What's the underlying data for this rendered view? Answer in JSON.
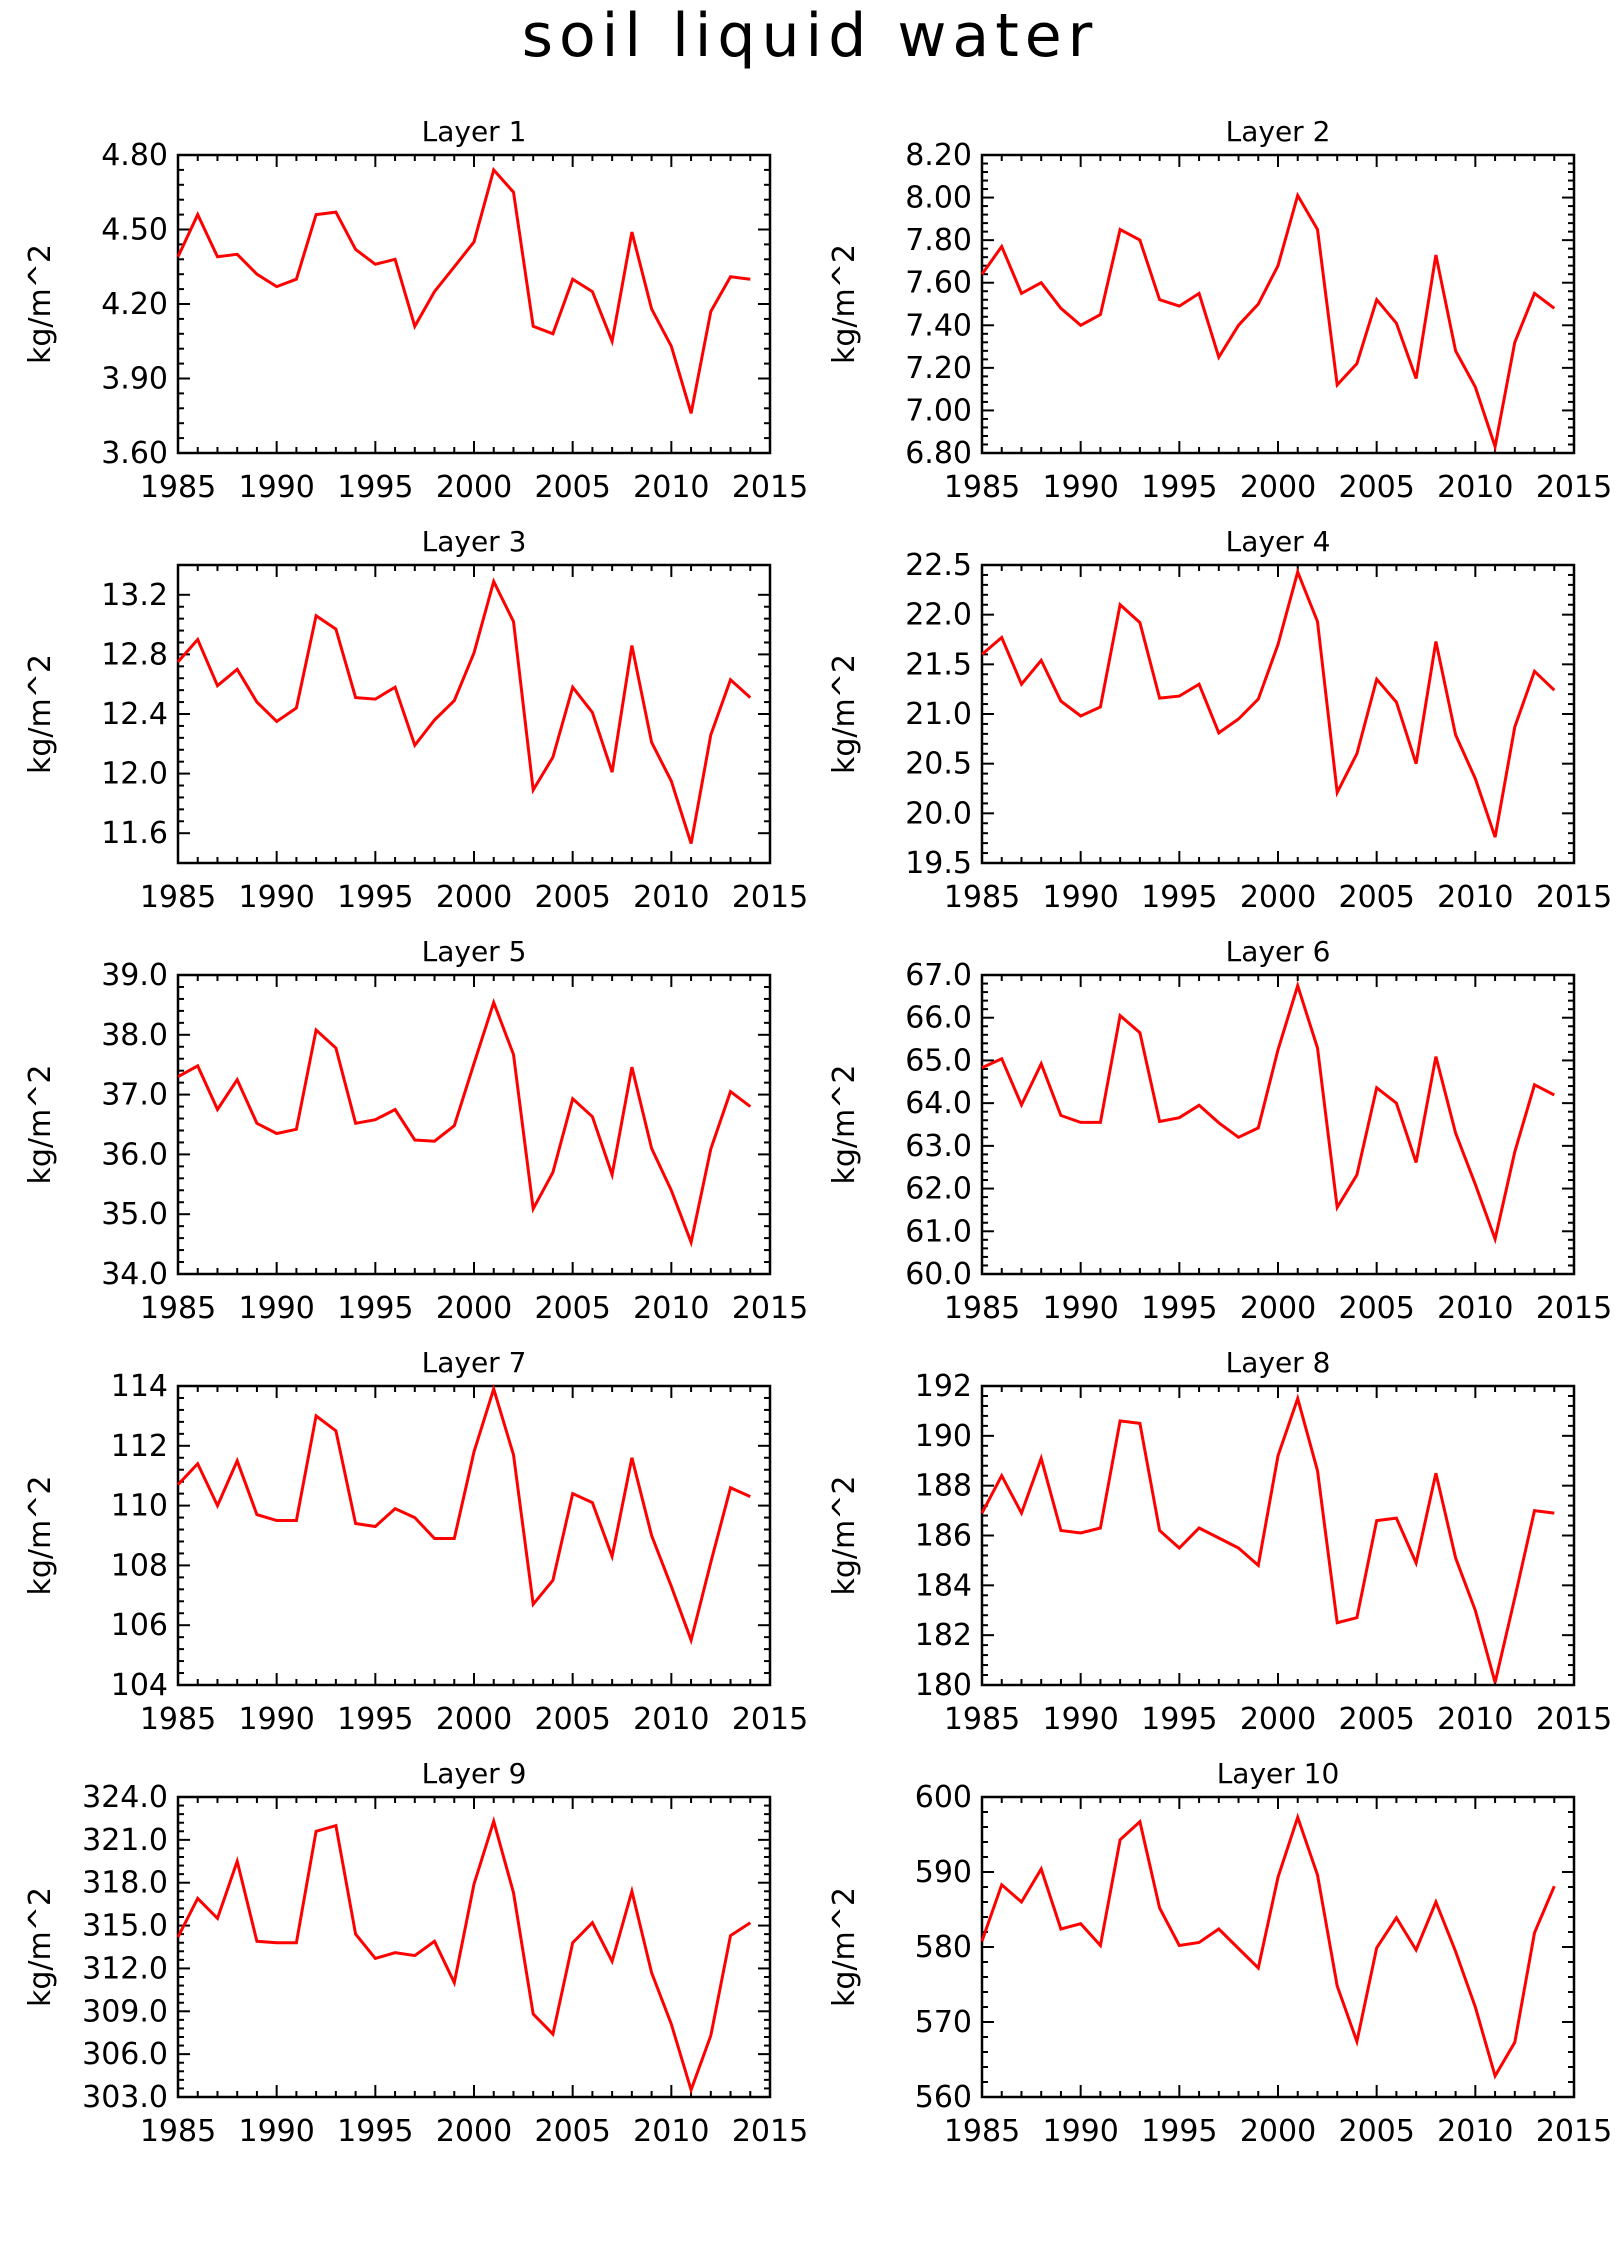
{
  "figure_title": "soil liquid water",
  "chart_data": [
    {
      "type": "line",
      "title": "Layer 1",
      "ylabel": "kg/m^2",
      "xlabel": "",
      "xlim": [
        1985,
        2015
      ],
      "ylim": [
        3.6,
        4.8
      ],
      "xticks": [
        "1985",
        "1990",
        "1995",
        "2000",
        "2005",
        "2010",
        "2015"
      ],
      "yticks": [
        "3.60",
        "3.90",
        "4.20",
        "4.50",
        "4.80"
      ],
      "series": [
        {
          "color": "#ff0000",
          "x": [
            1985,
            1986,
            1987,
            1988,
            1989,
            1990,
            1991,
            1992,
            1993,
            1994,
            1995,
            1996,
            1997,
            1998,
            1999,
            2000,
            2001,
            2002,
            2003,
            2004,
            2005,
            2006,
            2007,
            2008,
            2009,
            2010,
            2011,
            2012,
            2013,
            2014
          ],
          "values": [
            4.39,
            4.56,
            4.39,
            4.4,
            4.32,
            4.27,
            4.3,
            4.56,
            4.57,
            4.42,
            4.36,
            4.38,
            4.11,
            4.25,
            4.35,
            4.45,
            4.74,
            4.65,
            4.11,
            4.08,
            4.3,
            4.25,
            4.05,
            4.49,
            4.18,
            4.03,
            3.76,
            4.17,
            4.31,
            4.3
          ]
        }
      ]
    },
    {
      "type": "line",
      "title": "Layer 2",
      "ylabel": "kg/m^2",
      "xlabel": "",
      "xlim": [
        1985,
        2015
      ],
      "ylim": [
        6.8,
        8.2
      ],
      "xticks": [
        "1985",
        "1990",
        "1995",
        "2000",
        "2005",
        "2010",
        "2015"
      ],
      "yticks": [
        "6.80",
        "7.00",
        "7.20",
        "7.40",
        "7.60",
        "7.80",
        "8.00",
        "8.20"
      ],
      "series": [
        {
          "color": "#ff0000",
          "x": [
            1985,
            1986,
            1987,
            1988,
            1989,
            1990,
            1991,
            1992,
            1993,
            1994,
            1995,
            1996,
            1997,
            1998,
            1999,
            2000,
            2001,
            2002,
            2003,
            2004,
            2005,
            2006,
            2007,
            2008,
            2009,
            2010,
            2011,
            2012,
            2013,
            2014
          ],
          "values": [
            7.64,
            7.77,
            7.55,
            7.6,
            7.48,
            7.4,
            7.45,
            7.85,
            7.8,
            7.52,
            7.49,
            7.55,
            7.25,
            7.4,
            7.5,
            7.68,
            8.01,
            7.85,
            7.12,
            7.22,
            7.52,
            7.41,
            7.15,
            7.73,
            7.28,
            7.11,
            6.83,
            7.32,
            7.55,
            7.48
          ]
        }
      ]
    },
    {
      "type": "line",
      "title": "Layer 3",
      "ylabel": "kg/m^2",
      "xlabel": "",
      "xlim": [
        1985,
        2015
      ],
      "ylim": [
        11.4,
        13.4
      ],
      "xticks": [
        "1985",
        "1990",
        "1995",
        "2000",
        "2005",
        "2010",
        "2015"
      ],
      "yticks": [
        "11.6",
        "12.0",
        "12.4",
        "12.8",
        "13.2"
      ],
      "series": [
        {
          "color": "#ff0000",
          "x": [
            1985,
            1986,
            1987,
            1988,
            1989,
            1990,
            1991,
            1992,
            1993,
            1994,
            1995,
            1996,
            1997,
            1998,
            1999,
            2000,
            2001,
            2002,
            2003,
            2004,
            2005,
            2006,
            2007,
            2008,
            2009,
            2010,
            2011,
            2012,
            2013,
            2014
          ],
          "values": [
            12.75,
            12.9,
            12.59,
            12.7,
            12.48,
            12.35,
            12.44,
            13.06,
            12.97,
            12.51,
            12.5,
            12.58,
            12.19,
            12.36,
            12.49,
            12.81,
            13.29,
            13.02,
            11.89,
            12.11,
            12.58,
            12.41,
            12.01,
            12.86,
            12.21,
            11.95,
            11.53,
            12.26,
            12.63,
            12.51
          ]
        }
      ]
    },
    {
      "type": "line",
      "title": "Layer 4",
      "ylabel": "kg/m^2",
      "xlabel": "",
      "xlim": [
        1985,
        2015
      ],
      "ylim": [
        19.5,
        22.5
      ],
      "xticks": [
        "1985",
        "1990",
        "1995",
        "2000",
        "2005",
        "2010",
        "2015"
      ],
      "yticks": [
        "19.5",
        "20.0",
        "20.5",
        "21.0",
        "21.5",
        "22.0",
        "22.5"
      ],
      "series": [
        {
          "color": "#ff0000",
          "x": [
            1985,
            1986,
            1987,
            1988,
            1989,
            1990,
            1991,
            1992,
            1993,
            1994,
            1995,
            1996,
            1997,
            1998,
            1999,
            2000,
            2001,
            2002,
            2003,
            2004,
            2005,
            2006,
            2007,
            2008,
            2009,
            2010,
            2011,
            2012,
            2013,
            2014
          ],
          "values": [
            21.6,
            21.77,
            21.3,
            21.54,
            21.13,
            20.98,
            21.07,
            22.1,
            21.92,
            21.16,
            21.18,
            21.3,
            20.81,
            20.95,
            21.15,
            21.7,
            22.43,
            21.93,
            20.21,
            20.6,
            21.35,
            21.12,
            20.5,
            21.73,
            20.79,
            20.35,
            19.76,
            20.87,
            21.43,
            21.24
          ]
        }
      ]
    },
    {
      "type": "line",
      "title": "Layer 5",
      "ylabel": "kg/m^2",
      "xlabel": "",
      "xlim": [
        1985,
        2015
      ],
      "ylim": [
        34.0,
        39.0
      ],
      "xticks": [
        "1985",
        "1990",
        "1995",
        "2000",
        "2005",
        "2010",
        "2015"
      ],
      "yticks": [
        "34.0",
        "35.0",
        "36.0",
        "37.0",
        "38.0",
        "39.0"
      ],
      "series": [
        {
          "color": "#ff0000",
          "x": [
            1985,
            1986,
            1987,
            1988,
            1989,
            1990,
            1991,
            1992,
            1993,
            1994,
            1995,
            1996,
            1997,
            1998,
            1999,
            2000,
            2001,
            2002,
            2003,
            2004,
            2005,
            2006,
            2007,
            2008,
            2009,
            2010,
            2011,
            2012,
            2013,
            2014
          ],
          "values": [
            37.3,
            37.48,
            36.75,
            37.25,
            36.52,
            36.35,
            36.42,
            38.08,
            37.78,
            36.52,
            36.58,
            36.75,
            36.24,
            36.22,
            36.48,
            37.52,
            38.54,
            37.67,
            35.09,
            35.7,
            36.93,
            36.63,
            35.66,
            37.46,
            36.1,
            35.4,
            34.53,
            36.09,
            37.05,
            36.8
          ]
        }
      ]
    },
    {
      "type": "line",
      "title": "Layer 6",
      "ylabel": "kg/m^2",
      "xlabel": "",
      "xlim": [
        1985,
        2015
      ],
      "ylim": [
        60.0,
        67.0
      ],
      "xticks": [
        "1985",
        "1990",
        "1995",
        "2000",
        "2005",
        "2010",
        "2015"
      ],
      "yticks": [
        "60.0",
        "61.0",
        "62.0",
        "63.0",
        "64.0",
        "65.0",
        "66.0",
        "67.0"
      ],
      "series": [
        {
          "color": "#ff0000",
          "x": [
            1985,
            1986,
            1987,
            1988,
            1989,
            1990,
            1991,
            1992,
            1993,
            1994,
            1995,
            1996,
            1997,
            1998,
            1999,
            2000,
            2001,
            2002,
            2003,
            2004,
            2005,
            2006,
            2007,
            2008,
            2009,
            2010,
            2011,
            2012,
            2013,
            2014
          ],
          "values": [
            64.83,
            65.04,
            63.96,
            64.92,
            63.71,
            63.55,
            63.55,
            66.05,
            65.65,
            63.57,
            63.66,
            63.95,
            63.54,
            63.2,
            63.42,
            65.25,
            66.75,
            65.29,
            61.56,
            62.32,
            64.36,
            64.0,
            62.61,
            65.09,
            63.3,
            62.1,
            60.82,
            62.86,
            64.43,
            64.19
          ]
        }
      ]
    },
    {
      "type": "line",
      "title": "Layer 7",
      "ylabel": "kg/m^2",
      "xlabel": "",
      "xlim": [
        1985,
        2015
      ],
      "ylim": [
        104,
        114
      ],
      "xticks": [
        "1985",
        "1990",
        "1995",
        "2000",
        "2005",
        "2010",
        "2015"
      ],
      "yticks": [
        "104",
        "106",
        "108",
        "110",
        "112",
        "114"
      ],
      "series": [
        {
          "color": "#ff0000",
          "x": [
            1985,
            1986,
            1987,
            1988,
            1989,
            1990,
            1991,
            1992,
            1993,
            1994,
            1995,
            1996,
            1997,
            1998,
            1999,
            2000,
            2001,
            2002,
            2003,
            2004,
            2005,
            2006,
            2007,
            2008,
            2009,
            2010,
            2011,
            2012,
            2013,
            2014
          ],
          "values": [
            110.7,
            111.4,
            110.0,
            111.5,
            109.7,
            109.5,
            109.5,
            113.0,
            112.5,
            109.4,
            109.3,
            109.9,
            109.6,
            108.9,
            108.9,
            111.8,
            113.9,
            111.7,
            106.7,
            107.5,
            110.4,
            110.1,
            108.3,
            111.6,
            109.0,
            107.3,
            105.5,
            108.1,
            110.6,
            110.3
          ]
        }
      ]
    },
    {
      "type": "line",
      "title": "Layer 8",
      "ylabel": "kg/m^2",
      "xlabel": "",
      "xlim": [
        1985,
        2015
      ],
      "ylim": [
        180,
        192
      ],
      "xticks": [
        "1985",
        "1990",
        "1995",
        "2000",
        "2005",
        "2010",
        "2015"
      ],
      "yticks": [
        "180",
        "182",
        "184",
        "186",
        "188",
        "190",
        "192"
      ],
      "series": [
        {
          "color": "#ff0000",
          "x": [
            1985,
            1986,
            1987,
            1988,
            1989,
            1990,
            1991,
            1992,
            1993,
            1994,
            1995,
            1996,
            1997,
            1998,
            1999,
            2000,
            2001,
            2002,
            2003,
            2004,
            2005,
            2006,
            2007,
            2008,
            2009,
            2010,
            2011,
            2012,
            2013,
            2014
          ],
          "values": [
            186.9,
            188.4,
            186.9,
            189.1,
            186.2,
            186.1,
            186.3,
            190.6,
            190.5,
            186.2,
            185.5,
            186.3,
            185.9,
            185.5,
            184.8,
            189.2,
            191.5,
            188.6,
            182.5,
            182.7,
            186.6,
            186.7,
            184.9,
            188.5,
            185.1,
            183.0,
            180.1,
            183.5,
            187.0,
            186.9
          ]
        }
      ]
    },
    {
      "type": "line",
      "title": "Layer 9",
      "ylabel": "kg/m^2",
      "xlabel": "",
      "xlim": [
        1985,
        2015
      ],
      "ylim": [
        303.0,
        324.0
      ],
      "xticks": [
        "1985",
        "1990",
        "1995",
        "2000",
        "2005",
        "2010",
        "2015"
      ],
      "yticks": [
        "303.0",
        "306.0",
        "309.0",
        "312.0",
        "315.0",
        "318.0",
        "321.0",
        "324.0"
      ],
      "series": [
        {
          "color": "#ff0000",
          "x": [
            1985,
            1986,
            1987,
            1988,
            1989,
            1990,
            1991,
            1992,
            1993,
            1994,
            1995,
            1996,
            1997,
            1998,
            1999,
            2000,
            2001,
            2002,
            2003,
            2004,
            2005,
            2006,
            2007,
            2008,
            2009,
            2010,
            2011,
            2012,
            2013,
            2014
          ],
          "values": [
            314.2,
            316.9,
            315.5,
            319.5,
            313.9,
            313.8,
            313.8,
            321.6,
            322.0,
            314.4,
            312.7,
            313.1,
            312.9,
            313.9,
            311.0,
            317.9,
            322.3,
            317.3,
            308.8,
            307.4,
            313.8,
            315.2,
            312.5,
            317.4,
            311.7,
            308.1,
            303.5,
            307.3,
            314.3,
            315.2
          ]
        }
      ]
    },
    {
      "type": "line",
      "title": "Layer 10",
      "ylabel": "kg/m^2",
      "xlabel": "",
      "xlim": [
        1985,
        2015
      ],
      "ylim": [
        560,
        600
      ],
      "xticks": [
        "1985",
        "1990",
        "1995",
        "2000",
        "2005",
        "2010",
        "2015"
      ],
      "yticks": [
        "560",
        "570",
        "580",
        "590",
        "600"
      ],
      "series": [
        {
          "color": "#ff0000",
          "x": [
            1985,
            1986,
            1987,
            1988,
            1989,
            1990,
            1991,
            1992,
            1993,
            1994,
            1995,
            1996,
            1997,
            1998,
            1999,
            2000,
            2001,
            2002,
            2003,
            2004,
            2005,
            2006,
            2007,
            2008,
            2009,
            2010,
            2011,
            2012,
            2013,
            2014
          ],
          "values": [
            580.8,
            588.3,
            586.0,
            590.4,
            582.4,
            583.1,
            580.2,
            594.3,
            596.7,
            585.2,
            580.2,
            580.6,
            582.4,
            579.8,
            577.2,
            589.3,
            597.3,
            589.6,
            574.8,
            567.4,
            579.9,
            583.9,
            579.6,
            586.0,
            579.4,
            572.0,
            562.8,
            567.3,
            581.9,
            588.1
          ]
        }
      ]
    }
  ]
}
